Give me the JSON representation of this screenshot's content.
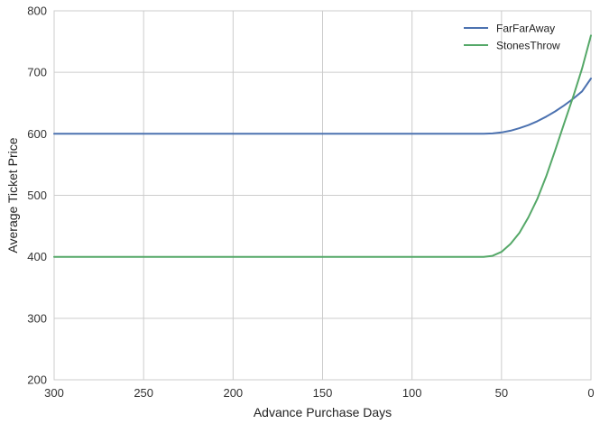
{
  "chart_data": {
    "type": "line",
    "xlabel": "Advance Purchase Days",
    "ylabel": "Average Ticket Price",
    "xlim": [
      300,
      0
    ],
    "ylim": [
      200,
      800
    ],
    "x_ticks": [
      300,
      250,
      200,
      150,
      100,
      50,
      0
    ],
    "y_ticks": [
      200,
      300,
      400,
      500,
      600,
      700,
      800
    ],
    "grid": true,
    "legend_position": "top-right",
    "series": [
      {
        "name": "FarFarAway",
        "color": "#4c72b0",
        "x": [
          300,
          250,
          200,
          150,
          100,
          60,
          55,
          50,
          45,
          40,
          35,
          30,
          25,
          20,
          15,
          10,
          5,
          0
        ],
        "y": [
          600,
          600,
          600,
          600,
          600,
          600,
          600.6,
          602.2,
          605.1,
          609.1,
          614.2,
          620.5,
          627.9,
          636.5,
          646.2,
          657.0,
          669.0,
          690
        ]
      },
      {
        "name": "StonesThrow",
        "color": "#55a868",
        "x": [
          300,
          250,
          200,
          150,
          100,
          60,
          55,
          50,
          45,
          40,
          35,
          30,
          25,
          20,
          15,
          10,
          5,
          0
        ],
        "y": [
          400,
          400,
          400,
          400,
          400,
          400,
          401.5,
          408,
          421,
          439,
          464,
          494,
          531,
          573,
          617,
          660,
          706,
          760
        ]
      }
    ]
  }
}
